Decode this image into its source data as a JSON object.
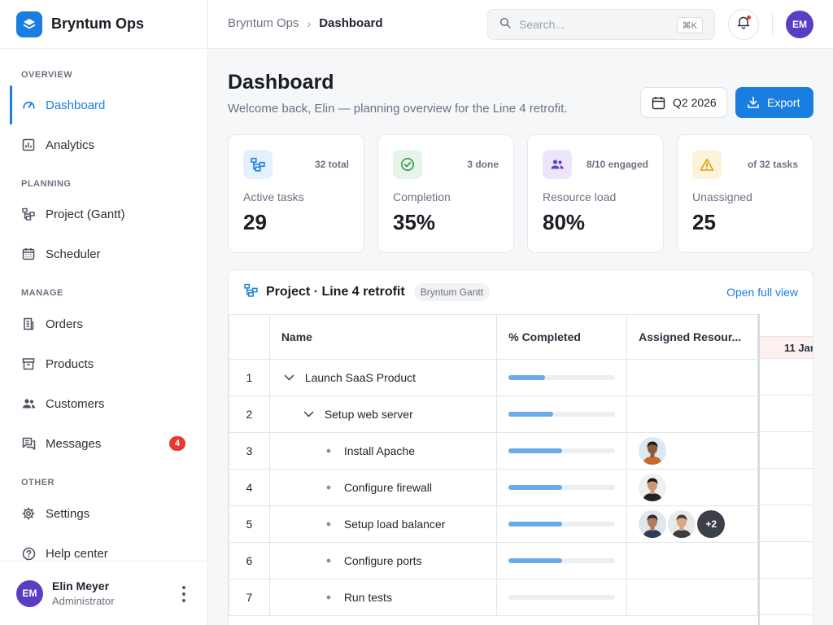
{
  "app": {
    "name": "Bryntum Ops"
  },
  "sidebar": {
    "sections": {
      "overview": "OVERVIEW",
      "planning": "PLANNING",
      "manage": "MANAGE",
      "other": "OTHER"
    },
    "items": {
      "dashboard": "Dashboard",
      "analytics": "Analytics",
      "gantt": "Project (Gantt)",
      "scheduler": "Scheduler",
      "orders": "Orders",
      "products": "Products",
      "customers": "Customers",
      "messages": "Messages",
      "messages_badge": "4",
      "settings": "Settings",
      "help": "Help center"
    },
    "user": {
      "initials": "EM",
      "name": "Elin Meyer",
      "role": "Administrator"
    }
  },
  "topbar": {
    "breadcrumb_root": "Bryntum Ops",
    "breadcrumb_sep": "›",
    "breadcrumb_current": "Dashboard",
    "search_placeholder": "Search...",
    "search_shortcut": "⌘K",
    "avatar_initials": "EM"
  },
  "header": {
    "title": "Dashboard",
    "subtitle": "Welcome back, Elin — planning overview for the Line 4 retrofit.",
    "period": "Q2 2026",
    "export": "Export"
  },
  "kpis": [
    {
      "label": "Active tasks",
      "value": "29",
      "meta": "32 total",
      "icon": "gantt-icon",
      "color": "#1a7ee0",
      "bg": "#e4f0fc"
    },
    {
      "label": "Completion",
      "value": "35%",
      "meta": "3 done",
      "icon": "check-circle-icon",
      "color": "#2e9a4f",
      "bg": "#e6f4ea"
    },
    {
      "label": "Resource load",
      "value": "80%",
      "meta": "8/10 engaged",
      "icon": "people-icon",
      "color": "#6a3fc8",
      "bg": "#ede6fb"
    },
    {
      "label": "Unassigned",
      "value": "25",
      "meta": "of 32 tasks",
      "icon": "warning-icon",
      "color": "#e0a100",
      "bg": "#fdf3dc"
    }
  ],
  "gantt": {
    "title": "Project · Line 4 retrofit",
    "chip": "Bryntum Gantt",
    "open_link": "Open full view",
    "columns": {
      "name": "Name",
      "pct": "% Completed",
      "resources": "Assigned Resour..."
    },
    "timeline_date": "11 Jan",
    "rows": [
      {
        "idx": "1",
        "name": "Launch SaaS Product",
        "level": 0,
        "type": "parent",
        "pct": 0.34
      },
      {
        "idx": "2",
        "name": "Setup web server",
        "level": 1,
        "type": "parent",
        "pct": 0.42
      },
      {
        "idx": "3",
        "name": "Install Apache",
        "level": 2,
        "type": "leaf",
        "pct": 0.5
      },
      {
        "idx": "4",
        "name": "Configure firewall",
        "level": 2,
        "type": "leaf",
        "pct": 0.5
      },
      {
        "idx": "5",
        "name": "Setup load balancer",
        "level": 2,
        "type": "leaf",
        "pct": 0.5
      },
      {
        "idx": "6",
        "name": "Configure ports",
        "level": 2,
        "type": "leaf",
        "pct": 0.5
      },
      {
        "idx": "7",
        "name": "Run tests",
        "level": 2,
        "type": "leaf",
        "pct": 0
      }
    ],
    "resources_overflow": "+2"
  }
}
